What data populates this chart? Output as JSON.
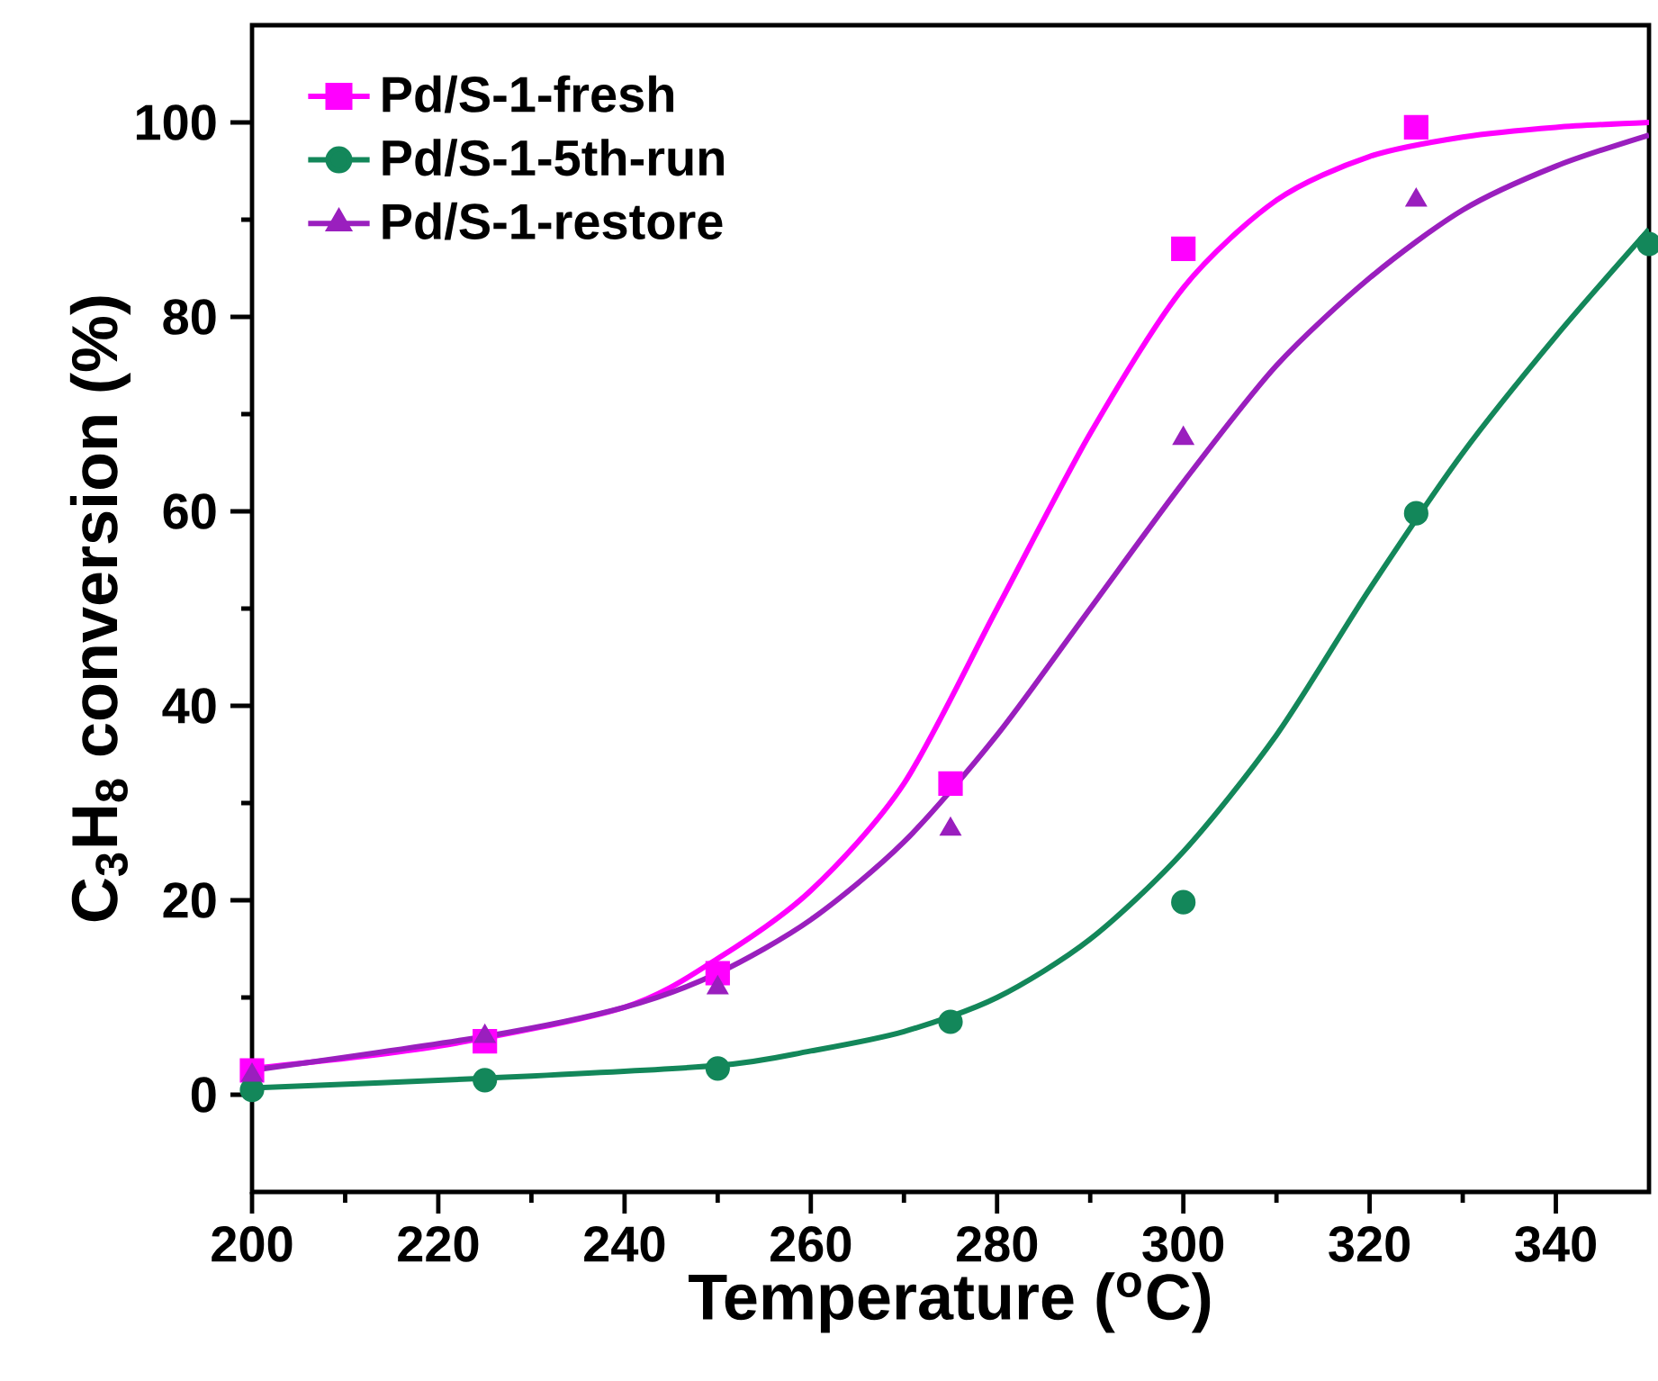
{
  "chart_data": {
    "type": "scatter",
    "xlabel": "Temperature ($^{o}$C)",
    "ylabel": "C$_{3}$H$_{8}$ conversion (%)",
    "xlim": [
      200,
      350
    ],
    "ylim": [
      -10,
      110
    ],
    "xticks": [
      200,
      220,
      240,
      260,
      280,
      300,
      320,
      340
    ],
    "yticks": [
      0,
      20,
      40,
      60,
      80,
      100
    ],
    "legend": "top left",
    "grid": false,
    "series": [
      {
        "name": "Pd/S-1-fresh",
        "color": "#ff00ff",
        "marker": "square",
        "x": [
          200,
          225,
          250,
          275,
          300,
          325
        ],
        "values": [
          2.5,
          5.5,
          12.5,
          32,
          87,
          99.5
        ]
      },
      {
        "name": "Pd/S-1-5th-run",
        "color": "#13875a",
        "marker": "circle",
        "x": [
          200,
          225,
          250,
          275,
          300,
          325,
          350
        ],
        "values": [
          0.5,
          1.5,
          2.7,
          7.5,
          19.8,
          59.8,
          87.5
        ]
      },
      {
        "name": "Pd/S-1-restore",
        "color": "#9a1fbe",
        "marker": "triangle",
        "x": [
          200,
          225,
          250,
          275,
          300,
          325
        ],
        "values": [
          2,
          6,
          11,
          27.3,
          67.5,
          92
        ]
      },
      {
        "type": "line",
        "color": "#ff00ff",
        "marker": "none",
        "x": [
          200,
          220,
          240,
          250,
          260,
          270,
          280,
          290,
          300,
          310,
          320,
          330,
          340,
          350
        ],
        "values": [
          2.7,
          5,
          9,
          14,
          21,
          32,
          50,
          68,
          83,
          92,
          96.5,
          98.5,
          99.5,
          100
        ]
      },
      {
        "type": "line",
        "color": "#13875a",
        "marker": "none",
        "x": [
          200,
          225,
          250,
          260,
          270,
          280,
          290,
          300,
          310,
          320,
          330,
          340,
          350
        ],
        "values": [
          0.7,
          1.7,
          3,
          4.5,
          6.5,
          10,
          16,
          25,
          37,
          52,
          66,
          78,
          89
        ]
      },
      {
        "type": "line",
        "color": "#9a1fbe",
        "marker": "none",
        "x": [
          200,
          225,
          240,
          250,
          260,
          270,
          280,
          290,
          300,
          310,
          320,
          330,
          340,
          350
        ],
        "values": [
          2.5,
          6,
          9,
          12.5,
          18,
          26,
          37,
          50,
          63,
          75,
          84,
          91,
          95.5,
          98.7
        ]
      }
    ]
  }
}
